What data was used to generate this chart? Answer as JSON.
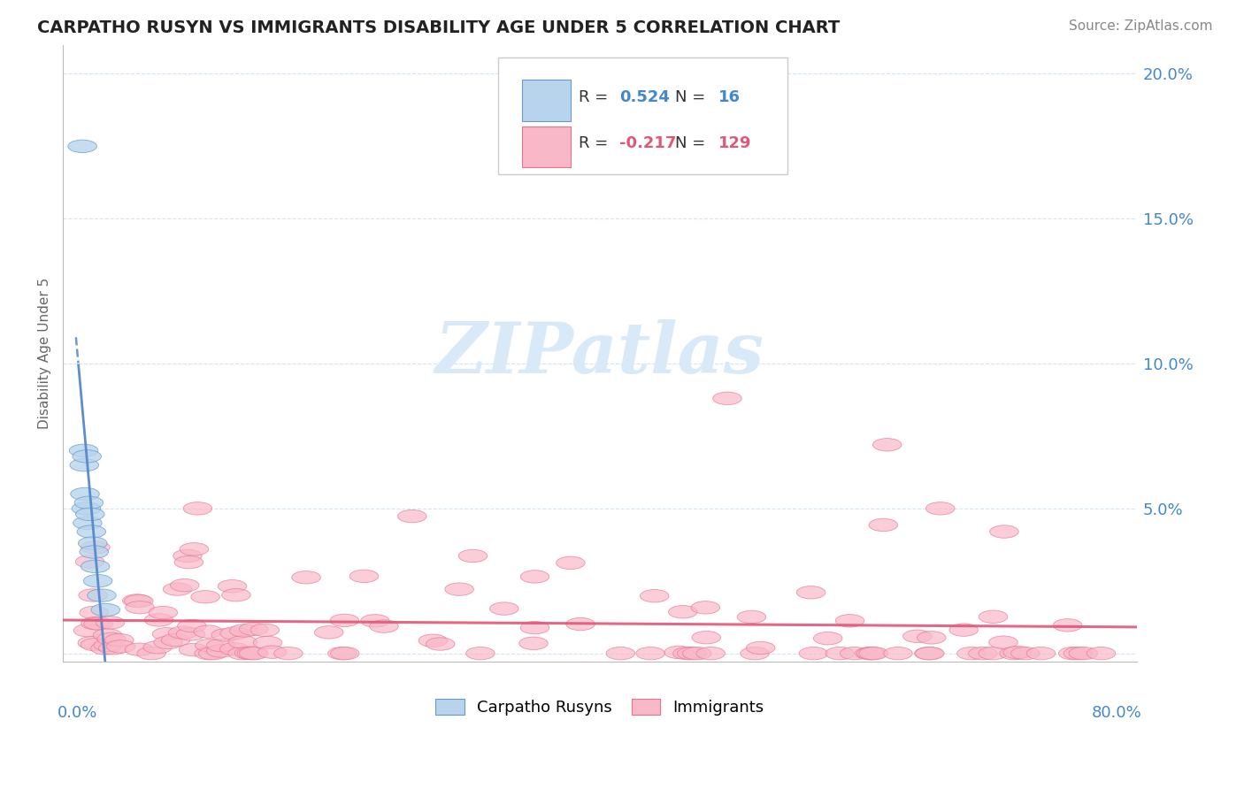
{
  "title": "CARPATHO RUSYN VS IMMIGRANTS DISABILITY AGE UNDER 5 CORRELATION CHART",
  "source": "Source: ZipAtlas.com",
  "ylabel": "Disability Age Under 5",
  "xmax": 80.0,
  "ymax": 20.0,
  "blue_R": 0.524,
  "blue_N": 16,
  "pink_R": -0.217,
  "pink_N": 129,
  "blue_fill": "#b8d4ec",
  "blue_edge": "#6699cc",
  "pink_fill": "#f8b8c8",
  "pink_edge": "#e87090",
  "blue_line_color": "#5588cc",
  "pink_line_color": "#e05878",
  "title_color": "#222222",
  "source_color": "#888888",
  "axis_label_color": "#4488cc",
  "ylabel_color": "#666666",
  "grid_color": "#ccddee",
  "legend_text_color": "#333333",
  "watermark_color": "#d8eaf8"
}
